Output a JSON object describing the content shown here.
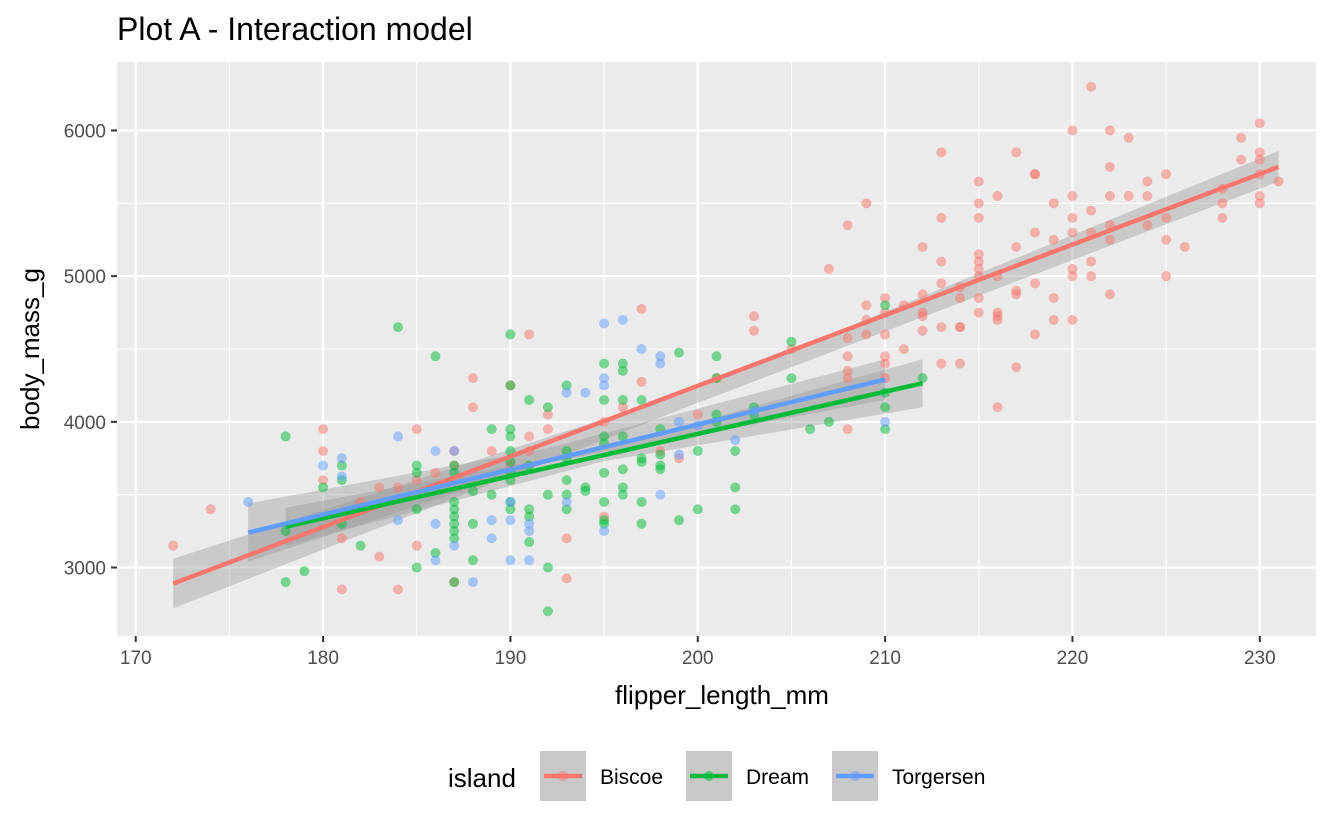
{
  "chart_data": {
    "type": "scatter",
    "title": "Plot A - Interaction model",
    "xlabel": "flipper_length_mm",
    "ylabel": "body_mass_g",
    "xlim": [
      169,
      233
    ],
    "ylim": [
      2530,
      6470
    ],
    "x_ticks": [
      170,
      180,
      190,
      200,
      210,
      220,
      230
    ],
    "y_ticks": [
      3000,
      4000,
      5000,
      6000
    ],
    "grid": true,
    "legend": {
      "title": "island",
      "position": "bottom"
    },
    "series": [
      {
        "name": "Biscoe",
        "color": "#F8766D",
        "fit": {
          "x": [
            172,
            231
          ],
          "y": [
            2890,
            5750
          ],
          "band": [
            [
              172,
              2720,
              3060
            ],
            [
              200,
              4130,
              4230
            ],
            [
              231,
              5650,
              5860
            ]
          ]
        },
        "points": [
          [
            172,
            3150
          ],
          [
            174,
            3400
          ],
          [
            180,
            3950
          ],
          [
            180,
            3800
          ],
          [
            180,
            3600
          ],
          [
            181,
            3200
          ],
          [
            181,
            2850
          ],
          [
            182,
            3450
          ],
          [
            183,
            3550
          ],
          [
            183,
            3075
          ],
          [
            184,
            3550
          ],
          [
            184,
            2850
          ],
          [
            185,
            3950
          ],
          [
            185,
            3150
          ],
          [
            185,
            3600
          ],
          [
            186,
            3650
          ],
          [
            187,
            3700
          ],
          [
            187,
            3800
          ],
          [
            187,
            2900
          ],
          [
            188,
            4300
          ],
          [
            188,
            4100
          ],
          [
            189,
            3800
          ],
          [
            190,
            4250
          ],
          [
            190,
            3700
          ],
          [
            191,
            4600
          ],
          [
            191,
            3900
          ],
          [
            191,
            3800
          ],
          [
            192,
            4050
          ],
          [
            192,
            3950
          ],
          [
            193,
            3200
          ],
          [
            193,
            2925
          ],
          [
            195,
            4000
          ],
          [
            195,
            3350
          ],
          [
            196,
            4100
          ],
          [
            197,
            4775
          ],
          [
            197,
            4275
          ],
          [
            198,
            3800
          ],
          [
            199,
            3750
          ],
          [
            200,
            4050
          ],
          [
            201,
            4300
          ],
          [
            203,
            4725
          ],
          [
            203,
            4625
          ],
          [
            205,
            4500
          ],
          [
            207,
            5050
          ],
          [
            208,
            5350
          ],
          [
            208,
            4575
          ],
          [
            208,
            4450
          ],
          [
            208,
            4350
          ],
          [
            208,
            4300
          ],
          [
            208,
            3950
          ],
          [
            209,
            5500
          ],
          [
            209,
            4800
          ],
          [
            209,
            4700
          ],
          [
            209,
            4600
          ],
          [
            210,
            4850
          ],
          [
            210,
            4750
          ],
          [
            210,
            4600
          ],
          [
            210,
            4450
          ],
          [
            210,
            4400
          ],
          [
            210,
            4300
          ],
          [
            211,
            4800
          ],
          [
            211,
            4500
          ],
          [
            212,
            5200
          ],
          [
            212,
            4875
          ],
          [
            212,
            4750
          ],
          [
            212,
            4725
          ],
          [
            212,
            4625
          ],
          [
            213,
            5850
          ],
          [
            213,
            5400
          ],
          [
            213,
            5100
          ],
          [
            213,
            4950
          ],
          [
            213,
            4650
          ],
          [
            213,
            4400
          ],
          [
            214,
            4925
          ],
          [
            214,
            4850
          ],
          [
            214,
            4650
          ],
          [
            214,
            4650
          ],
          [
            214,
            4400
          ],
          [
            215,
            5650
          ],
          [
            215,
            5500
          ],
          [
            215,
            5400
          ],
          [
            215,
            5150
          ],
          [
            215,
            5100
          ],
          [
            215,
            5050
          ],
          [
            215,
            5000
          ],
          [
            215,
            4850
          ],
          [
            215,
            4750
          ],
          [
            216,
            5550
          ],
          [
            216,
            5000
          ],
          [
            216,
            4750
          ],
          [
            216,
            4725
          ],
          [
            216,
            4700
          ],
          [
            216,
            4100
          ],
          [
            217,
            5850
          ],
          [
            217,
            5200
          ],
          [
            217,
            4900
          ],
          [
            217,
            4875
          ],
          [
            217,
            4375
          ],
          [
            218,
            5700
          ],
          [
            218,
            5700
          ],
          [
            218,
            5300
          ],
          [
            218,
            4950
          ],
          [
            218,
            4600
          ],
          [
            219,
            5500
          ],
          [
            219,
            5250
          ],
          [
            219,
            4850
          ],
          [
            219,
            4700
          ],
          [
            220,
            6000
          ],
          [
            220,
            5550
          ],
          [
            220,
            5400
          ],
          [
            220,
            5300
          ],
          [
            220,
            5050
          ],
          [
            220,
            5000
          ],
          [
            220,
            4700
          ],
          [
            221,
            6300
          ],
          [
            221,
            5450
          ],
          [
            221,
            5300
          ],
          [
            221,
            5100
          ],
          [
            221,
            5000
          ],
          [
            222,
            6000
          ],
          [
            222,
            5750
          ],
          [
            222,
            5550
          ],
          [
            222,
            5350
          ],
          [
            222,
            5250
          ],
          [
            222,
            4875
          ],
          [
            223,
            5950
          ],
          [
            223,
            5550
          ],
          [
            224,
            5650
          ],
          [
            224,
            5550
          ],
          [
            224,
            5350
          ],
          [
            225,
            5700
          ],
          [
            225,
            5400
          ],
          [
            225,
            5250
          ],
          [
            225,
            5000
          ],
          [
            226,
            5200
          ],
          [
            228,
            5600
          ],
          [
            228,
            5500
          ],
          [
            228,
            5400
          ],
          [
            229,
            5950
          ],
          [
            229,
            5800
          ],
          [
            230,
            6050
          ],
          [
            230,
            5850
          ],
          [
            230,
            5800
          ],
          [
            230,
            5700
          ],
          [
            230,
            5550
          ],
          [
            230,
            5500
          ],
          [
            231,
            5650
          ]
        ]
      },
      {
        "name": "Dream",
        "color": "#00BA38",
        "fit": {
          "x": [
            178,
            212
          ],
          "y": [
            3280,
            4265
          ],
          "band": [
            [
              178,
              3150,
              3410
            ],
            [
              195,
              3730,
              3820
            ],
            [
              212,
              4100,
              4430
            ]
          ]
        },
        "points": [
          [
            178,
            3900
          ],
          [
            178,
            3250
          ],
          [
            178,
            2900
          ],
          [
            179,
            2975
          ],
          [
            180,
            3550
          ],
          [
            181,
            3700
          ],
          [
            181,
            3600
          ],
          [
            181,
            3300
          ],
          [
            182,
            3150
          ],
          [
            184,
            4650
          ],
          [
            185,
            3700
          ],
          [
            185,
            3650
          ],
          [
            185,
            3400
          ],
          [
            185,
            3000
          ],
          [
            186,
            4450
          ],
          [
            186,
            3100
          ],
          [
            187,
            3700
          ],
          [
            187,
            3650
          ],
          [
            187,
            3450
          ],
          [
            187,
            3400
          ],
          [
            187,
            3350
          ],
          [
            187,
            3300
          ],
          [
            187,
            3250
          ],
          [
            187,
            3200
          ],
          [
            187,
            2900
          ],
          [
            188,
            3525
          ],
          [
            188,
            3300
          ],
          [
            188,
            3050
          ],
          [
            189,
            3950
          ],
          [
            189,
            3500
          ],
          [
            190,
            4600
          ],
          [
            190,
            4250
          ],
          [
            190,
            3950
          ],
          [
            190,
            3900
          ],
          [
            190,
            3800
          ],
          [
            190,
            3725
          ],
          [
            190,
            3650
          ],
          [
            190,
            3600
          ],
          [
            190,
            3450
          ],
          [
            190,
            3400
          ],
          [
            191,
            4150
          ],
          [
            191,
            3700
          ],
          [
            191,
            3400
          ],
          [
            191,
            3350
          ],
          [
            191,
            3175
          ],
          [
            192,
            4100
          ],
          [
            192,
            3500
          ],
          [
            192,
            3000
          ],
          [
            192,
            2700
          ],
          [
            193,
            4250
          ],
          [
            193,
            3800
          ],
          [
            193,
            3750
          ],
          [
            193,
            3600
          ],
          [
            193,
            3500
          ],
          [
            193,
            3400
          ],
          [
            194,
            3550
          ],
          [
            194,
            3525
          ],
          [
            195,
            4400
          ],
          [
            195,
            4150
          ],
          [
            195,
            3900
          ],
          [
            195,
            3850
          ],
          [
            195,
            3650
          ],
          [
            195,
            3450
          ],
          [
            195,
            3325
          ],
          [
            195,
            3300
          ],
          [
            196,
            4400
          ],
          [
            196,
            4350
          ],
          [
            196,
            4150
          ],
          [
            196,
            3900
          ],
          [
            196,
            3675
          ],
          [
            196,
            3550
          ],
          [
            196,
            3500
          ],
          [
            197,
            4150
          ],
          [
            197,
            3750
          ],
          [
            197,
            3725
          ],
          [
            197,
            3450
          ],
          [
            197,
            3300
          ],
          [
            198,
            3950
          ],
          [
            198,
            3775
          ],
          [
            198,
            3700
          ],
          [
            198,
            3675
          ],
          [
            199,
            4475
          ],
          [
            199,
            3325
          ],
          [
            200,
            3800
          ],
          [
            200,
            3400
          ],
          [
            201,
            4450
          ],
          [
            201,
            4300
          ],
          [
            201,
            4050
          ],
          [
            201,
            4000
          ],
          [
            202,
            3800
          ],
          [
            202,
            3550
          ],
          [
            202,
            3400
          ],
          [
            203,
            4100
          ],
          [
            203,
            4050
          ],
          [
            205,
            4550
          ],
          [
            205,
            4300
          ],
          [
            206,
            3950
          ],
          [
            207,
            4000
          ],
          [
            210,
            4800
          ],
          [
            210,
            4200
          ],
          [
            210,
            4100
          ],
          [
            210,
            3950
          ],
          [
            212,
            4300
          ]
        ]
      },
      {
        "name": "Torgersen",
        "color": "#619CFF",
        "fit": {
          "x": [
            176,
            210
          ],
          "y": [
            3240,
            4290
          ],
          "band": [
            [
              176,
              3040,
              3440
            ],
            [
              192,
              3720,
              3820
            ],
            [
              210,
              4150,
              4430
            ]
          ]
        },
        "points": [
          [
            176,
            3450
          ],
          [
            180,
            3700
          ],
          [
            181,
            3750
          ],
          [
            181,
            3625
          ],
          [
            184,
            3900
          ],
          [
            184,
            3325
          ],
          [
            186,
            3800
          ],
          [
            186,
            3300
          ],
          [
            186,
            3050
          ],
          [
            187,
            3800
          ],
          [
            187,
            3150
          ],
          [
            188,
            2900
          ],
          [
            189,
            3325
          ],
          [
            189,
            3200
          ],
          [
            190,
            3450
          ],
          [
            190,
            3325
          ],
          [
            190,
            3050
          ],
          [
            191,
            3300
          ],
          [
            191,
            3250
          ],
          [
            191,
            3050
          ],
          [
            193,
            4200
          ],
          [
            193,
            3450
          ],
          [
            194,
            4200
          ],
          [
            195,
            4675
          ],
          [
            195,
            4300
          ],
          [
            195,
            4250
          ],
          [
            195,
            3250
          ],
          [
            196,
            4700
          ],
          [
            197,
            4500
          ],
          [
            198,
            4450
          ],
          [
            198,
            4400
          ],
          [
            198,
            3500
          ],
          [
            199,
            4000
          ],
          [
            199,
            3775
          ],
          [
            200,
            3975
          ],
          [
            202,
            3875
          ],
          [
            203,
            4075
          ],
          [
            210,
            4000
          ]
        ]
      }
    ]
  }
}
